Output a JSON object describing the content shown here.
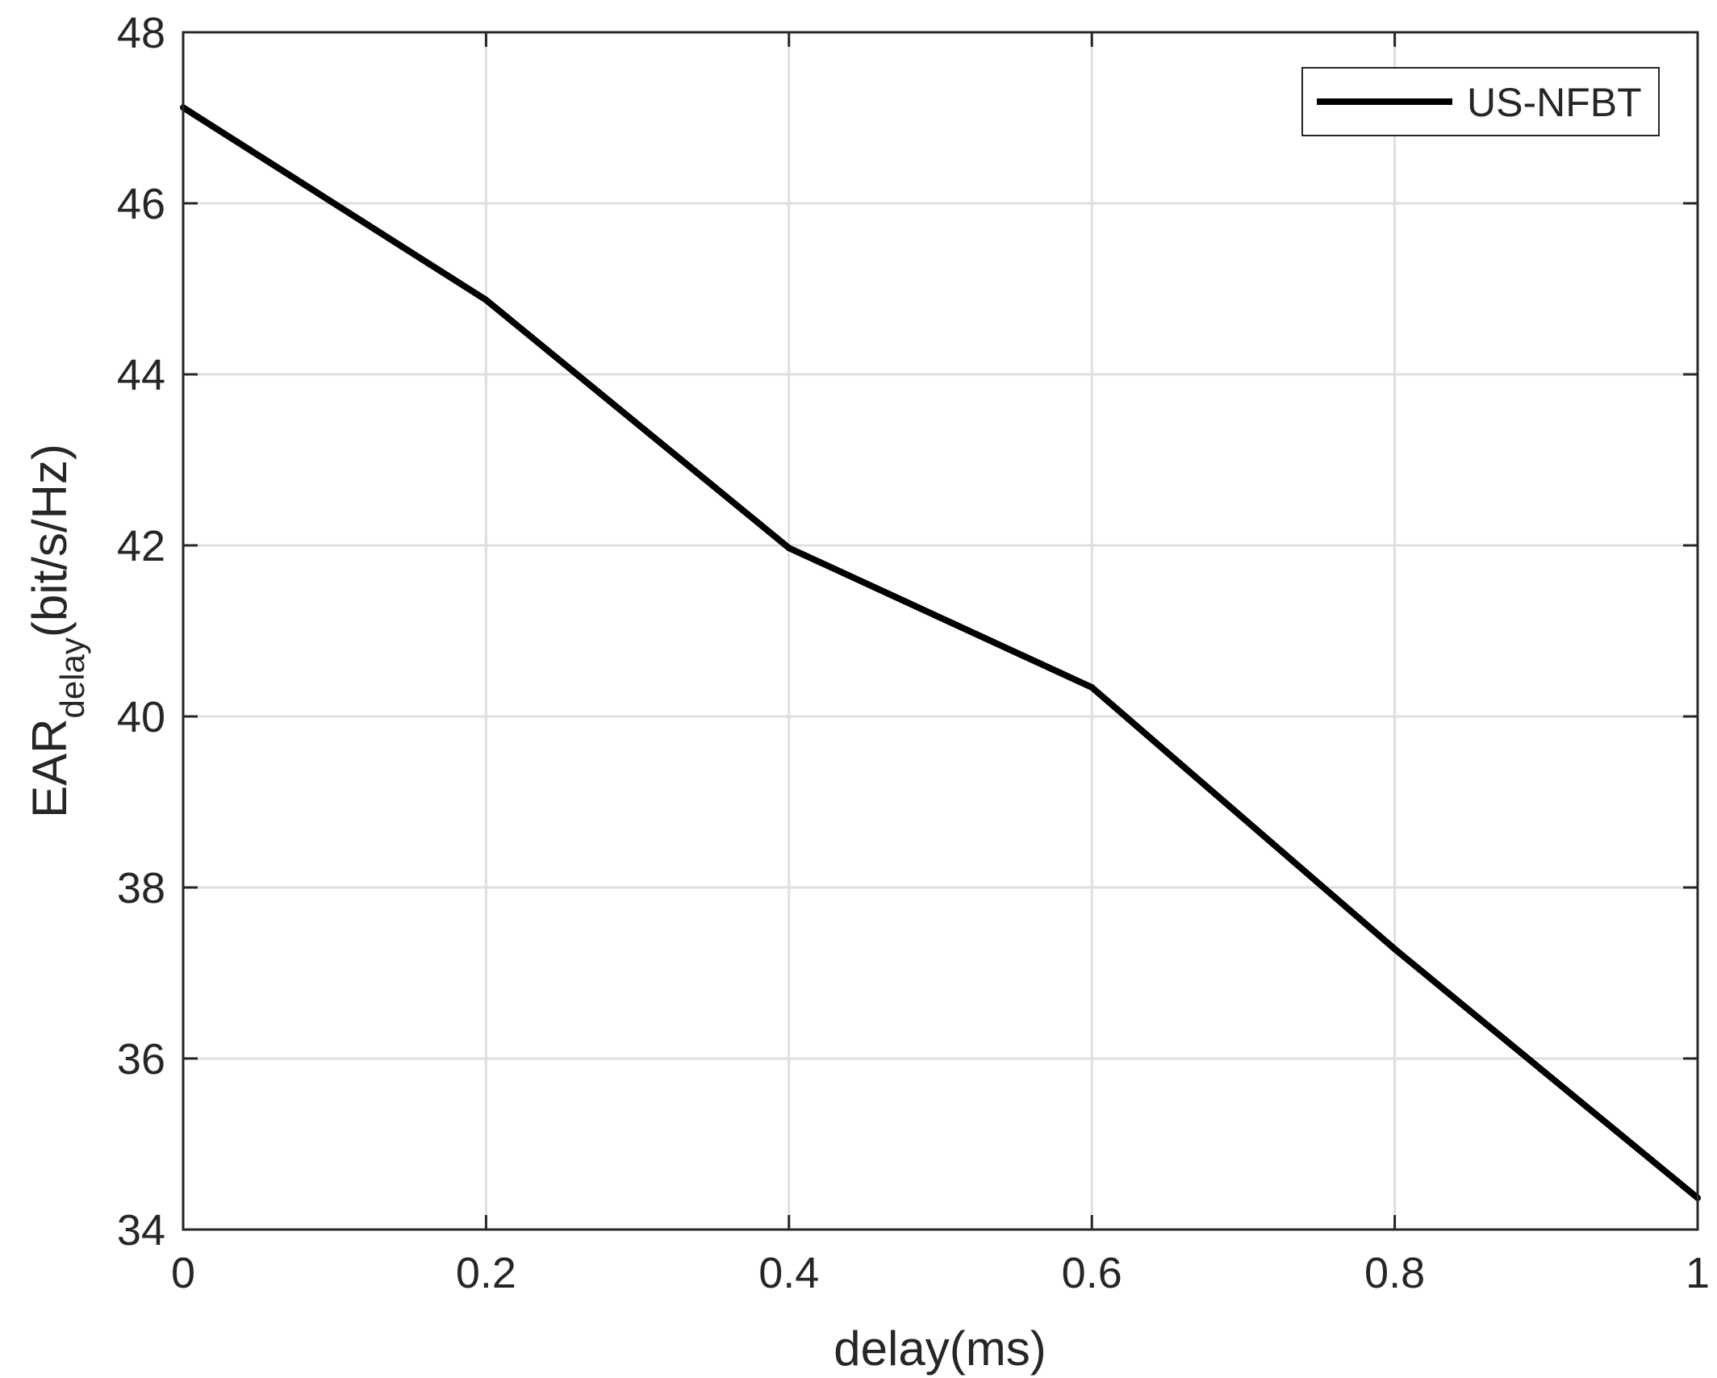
{
  "chart_data": {
    "type": "line",
    "title": "",
    "xlabel": "delay(ms)",
    "ylabel": {
      "main": "EAR",
      "subscript": "delay",
      "unit": "(bit/s/Hz)"
    },
    "xlim": [
      0,
      1
    ],
    "ylim": [
      34,
      48
    ],
    "x_ticks": [
      0,
      0.2,
      0.4,
      0.6,
      0.8,
      1
    ],
    "x_tick_labels": [
      "0",
      "0.2",
      "0.4",
      "0.6",
      "0.8",
      "1"
    ],
    "y_ticks": [
      34,
      36,
      38,
      40,
      42,
      44,
      46,
      48
    ],
    "y_tick_labels": [
      "34",
      "36",
      "38",
      "40",
      "42",
      "44",
      "46",
      "48"
    ],
    "grid": true,
    "legend_position": "top-right",
    "series": [
      {
        "name": "US-NFBT",
        "color": "#000000",
        "x": [
          0,
          0.2,
          0.4,
          0.6,
          0.8,
          1
        ],
        "y": [
          47.12,
          44.87,
          41.97,
          40.34,
          37.28,
          34.37
        ]
      }
    ]
  }
}
